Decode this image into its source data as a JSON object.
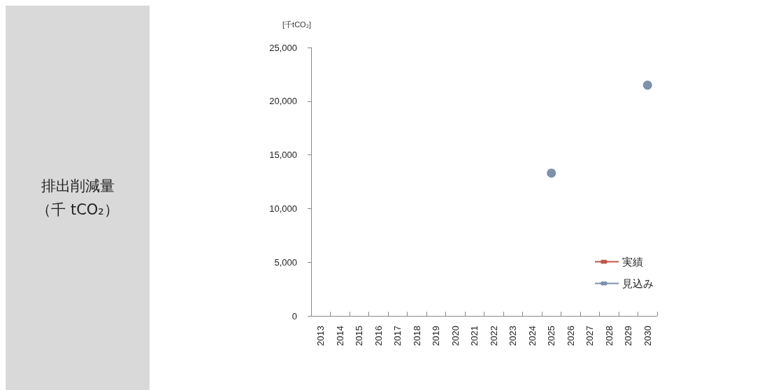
{
  "chart_data": {
    "type": "line",
    "title": "排出削減量（千 tCO₂）",
    "ylabel": "[千tCO₂]",
    "categories": [
      "2013",
      "2014",
      "2015",
      "2016",
      "2017",
      "2018",
      "2019",
      "2020",
      "2021",
      "2022",
      "2023",
      "2024",
      "2025",
      "2026",
      "2027",
      "2028",
      "2029",
      "2030"
    ],
    "series": [
      {
        "name": "実績",
        "color": "#c0574a",
        "values": [
          null,
          null,
          null,
          null,
          null,
          null,
          null,
          null,
          null,
          null,
          null,
          null,
          null,
          null,
          null,
          null,
          null,
          null
        ]
      },
      {
        "name": "見込み",
        "type": "scatter",
        "color": "#5b7596",
        "values": [
          null,
          null,
          null,
          null,
          null,
          null,
          null,
          null,
          null,
          null,
          null,
          null,
          13300,
          null,
          null,
          null,
          null,
          21500
        ]
      }
    ],
    "ylim": [
      0,
      25000
    ],
    "yticks": [
      0,
      {
        "value": 5000,
        "label": "5,000"
      },
      {
        "value": 10000,
        "label": "10,000"
      },
      {
        "value": 15000,
        "label": "15,000"
      },
      {
        "value": 20000,
        "label": "20,000"
      },
      {
        "value": 25000,
        "label": "25,000"
      }
    ],
    "grid": false,
    "legend": "bottom right",
    "marker": "circle"
  }
}
